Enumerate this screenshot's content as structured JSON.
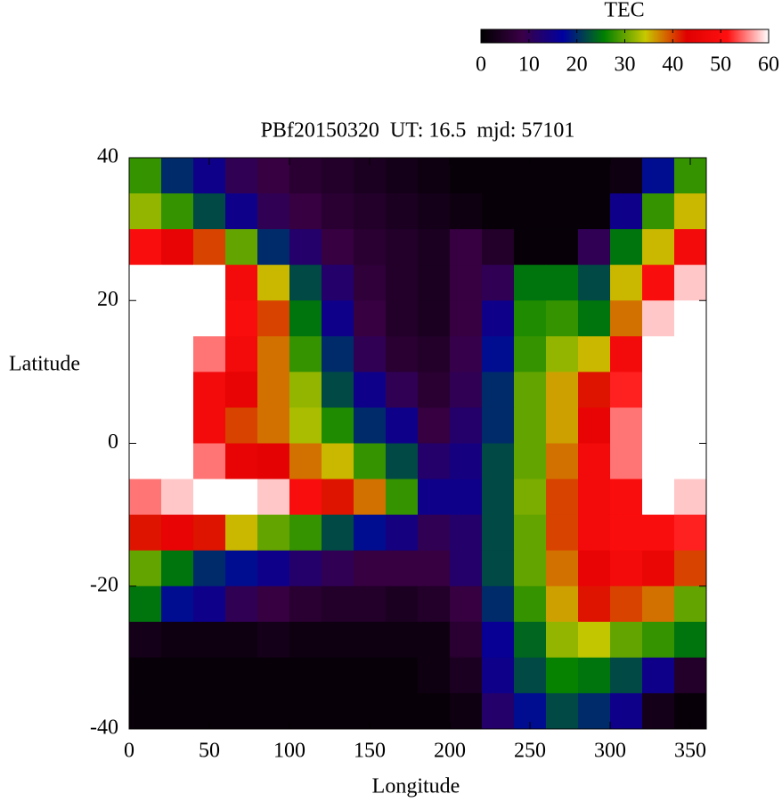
{
  "chart_data": {
    "type": "heatmap",
    "title": "PBf20150320  UT: 16.5  mjd: 57101",
    "x_label": "Longitude",
    "y_label": "Latitude",
    "colorbar_label": "TEC",
    "x": [
      10,
      30,
      50,
      70,
      90,
      110,
      130,
      150,
      170,
      190,
      210,
      230,
      250,
      270,
      290,
      310,
      330,
      350
    ],
    "y": [
      37.5,
      32.5,
      27.5,
      22.5,
      17.5,
      12.5,
      7.5,
      2.5,
      -2.5,
      -7.5,
      -12.5,
      -17.5,
      -22.5,
      -27.5,
      -32.5,
      -37.5
    ],
    "z": [
      [
        28,
        20,
        15,
        10,
        8,
        6,
        5,
        4,
        3,
        2,
        1,
        1,
        1,
        1,
        1,
        2,
        18,
        28
      ],
      [
        32,
        28,
        22,
        15,
        10,
        8,
        6,
        5,
        4,
        3,
        2,
        1,
        1,
        1,
        1,
        15,
        28,
        35
      ],
      [
        50,
        45,
        40,
        30,
        20,
        12,
        8,
        6,
        5,
        4,
        8,
        5,
        1,
        1,
        10,
        25,
        35,
        48
      ],
      [
        60,
        60,
        60,
        48,
        35,
        22,
        12,
        7,
        5,
        4,
        8,
        10,
        25,
        25,
        22,
        35,
        50,
        58
      ],
      [
        60,
        60,
        60,
        50,
        40,
        25,
        15,
        8,
        5,
        4,
        8,
        15,
        27,
        28,
        25,
        38,
        58,
        60
      ],
      [
        60,
        60,
        55,
        48,
        38,
        28,
        20,
        10,
        6,
        5,
        9,
        18,
        28,
        32,
        35,
        48,
        60,
        60
      ],
      [
        60,
        60,
        48,
        45,
        38,
        32,
        22,
        15,
        10,
        6,
        10,
        20,
        30,
        36,
        42,
        52,
        60,
        60
      ],
      [
        60,
        60,
        48,
        40,
        38,
        33,
        27,
        20,
        15,
        8,
        12,
        20,
        30,
        36,
        45,
        55,
        60,
        60
      ],
      [
        60,
        60,
        55,
        45,
        44,
        38,
        35,
        28,
        22,
        12,
        14,
        22,
        30,
        38,
        48,
        55,
        60,
        60
      ],
      [
        55,
        58,
        60,
        60,
        58,
        50,
        42,
        38,
        28,
        15,
        15,
        22,
        31,
        40,
        48,
        50,
        60,
        58
      ],
      [
        42,
        45,
        42,
        35,
        30,
        28,
        22,
        18,
        14,
        10,
        12,
        22,
        30,
        40,
        48,
        50,
        50,
        52
      ],
      [
        30,
        25,
        20,
        18,
        15,
        12,
        10,
        8,
        8,
        8,
        12,
        22,
        30,
        38,
        45,
        48,
        46,
        40
      ],
      [
        25,
        18,
        15,
        10,
        8,
        6,
        5,
        5,
        4,
        5,
        8,
        20,
        28,
        36,
        42,
        40,
        38,
        30
      ],
      [
        3,
        2,
        2,
        2,
        3,
        2,
        2,
        2,
        2,
        2,
        6,
        16,
        24,
        32,
        34,
        30,
        28,
        25
      ],
      [
        1,
        1,
        1,
        1,
        1,
        1,
        1,
        1,
        1,
        2,
        4,
        15,
        22,
        26,
        25,
        22,
        15,
        5
      ],
      [
        1,
        1,
        1,
        1,
        1,
        1,
        1,
        1,
        1,
        1,
        2,
        12,
        18,
        22,
        20,
        15,
        3,
        1
      ]
    ],
    "xlim": [
      0,
      360
    ],
    "xticks": [
      0,
      50,
      100,
      150,
      200,
      250,
      300,
      350
    ],
    "ylim": [
      -40,
      40
    ],
    "yticks": [
      -40,
      -20,
      0,
      20,
      40
    ],
    "zlim": [
      0,
      60
    ],
    "zticks": [
      0,
      10,
      20,
      30,
      40,
      50,
      60
    ],
    "colormap": [
      "#000000",
      "#3a0046",
      "#0000a0",
      "#008000",
      "#c8c800",
      "#e00000",
      "#ff1010",
      "#ffffff"
    ]
  }
}
